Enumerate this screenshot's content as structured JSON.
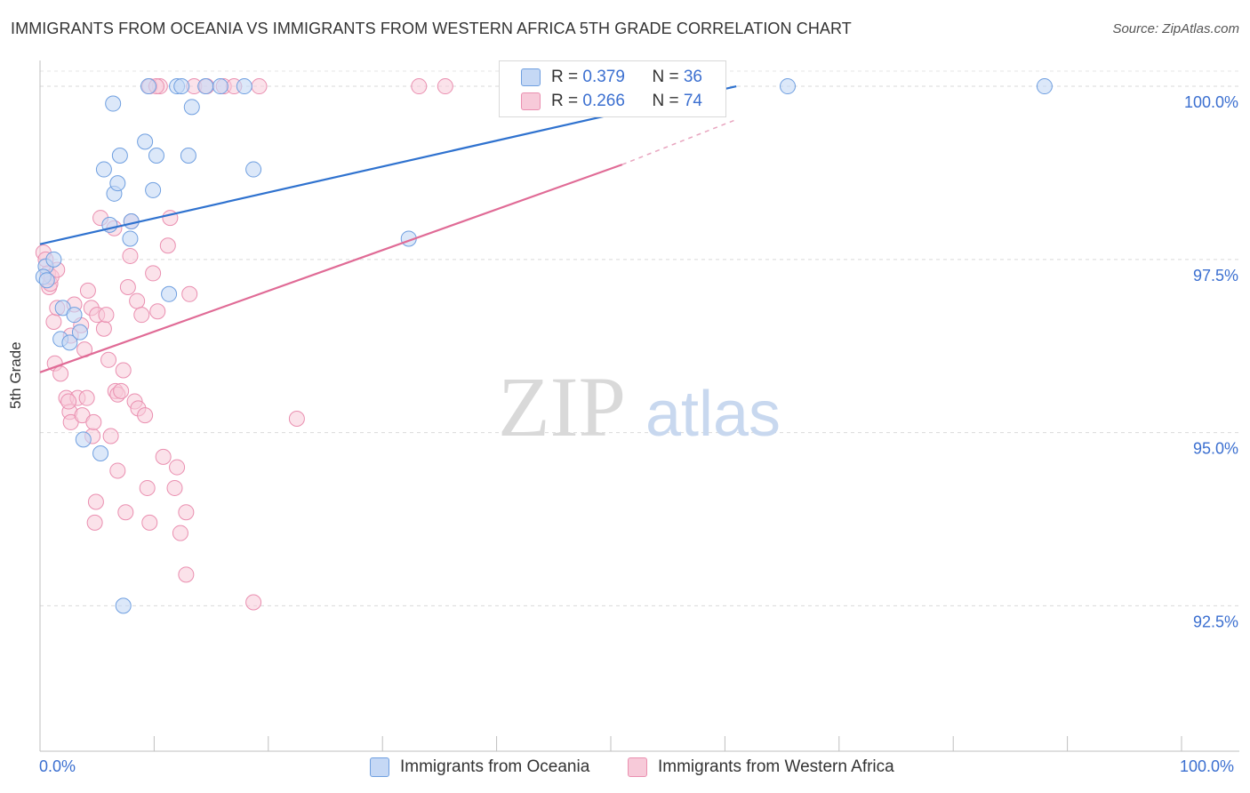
{
  "title": "IMMIGRANTS FROM OCEANIA VS IMMIGRANTS FROM WESTERN AFRICA 5TH GRADE CORRELATION CHART",
  "source": "Source: ZipAtlas.com",
  "watermark": {
    "zip": "ZIP",
    "atlas": "atlas"
  },
  "legend": {
    "rows": [
      {
        "r_label": "R = ",
        "r_value": "0.379",
        "n_label": "N = ",
        "n_value": "36"
      },
      {
        "r_label": "R = ",
        "r_value": "0.266",
        "n_label": "N = ",
        "n_value": "74"
      }
    ]
  },
  "chart_data": {
    "type": "scatter",
    "title": "IMMIGRANTS FROM OCEANIA VS IMMIGRANTS FROM WESTERN AFRICA 5TH GRADE CORRELATION CHART",
    "xlabel": "",
    "ylabel": "5th Grade",
    "xlim": [
      0,
      100
    ],
    "ylim": [
      90.4,
      100.45
    ],
    "x_tick_labels": [
      "0.0%",
      "100.0%"
    ],
    "y_ticks": [
      92.5,
      95.0,
      97.5,
      100.0
    ],
    "y_tick_labels": [
      "92.5%",
      "95.0%",
      "97.5%",
      "100.0%"
    ],
    "grid": true,
    "colors": {
      "oceania": "#6f9fe0",
      "oceania_fill": "#c5d8f5",
      "wafrica": "#ea8fb0",
      "wafrica_fill": "#f7cad9",
      "axis_label": "#3b6fd0"
    },
    "series": [
      {
        "name": "Immigrants from Oceania",
        "r": 0.379,
        "n": 36,
        "trend": {
          "x": [
            0,
            61
          ],
          "y": [
            97.72,
            100.0
          ]
        },
        "points": [
          {
            "x": 0.5,
            "y": 97.4
          },
          {
            "x": 1.2,
            "y": 97.5
          },
          {
            "x": 2.0,
            "y": 96.8
          },
          {
            "x": 3.0,
            "y": 96.7
          },
          {
            "x": 1.8,
            "y": 96.35
          },
          {
            "x": 2.6,
            "y": 96.3
          },
          {
            "x": 3.5,
            "y": 96.45
          },
          {
            "x": 3.8,
            "y": 94.9
          },
          {
            "x": 5.3,
            "y": 94.7
          },
          {
            "x": 6.5,
            "y": 98.45
          },
          {
            "x": 6.8,
            "y": 98.6
          },
          {
            "x": 5.6,
            "y": 98.8
          },
          {
            "x": 7.0,
            "y": 99.0
          },
          {
            "x": 6.4,
            "y": 99.75
          },
          {
            "x": 9.2,
            "y": 99.2
          },
          {
            "x": 10.2,
            "y": 99.0
          },
          {
            "x": 9.9,
            "y": 98.5
          },
          {
            "x": 6.1,
            "y": 98.0
          },
          {
            "x": 8.0,
            "y": 98.05
          },
          {
            "x": 7.9,
            "y": 97.8
          },
          {
            "x": 11.3,
            "y": 97.0
          },
          {
            "x": 9.5,
            "y": 100.0
          },
          {
            "x": 12.0,
            "y": 100.0
          },
          {
            "x": 12.4,
            "y": 100.0
          },
          {
            "x": 14.5,
            "y": 100.0
          },
          {
            "x": 15.8,
            "y": 100.0
          },
          {
            "x": 17.9,
            "y": 100.0
          },
          {
            "x": 13.3,
            "y": 99.7
          },
          {
            "x": 13.0,
            "y": 99.0
          },
          {
            "x": 18.7,
            "y": 98.8
          },
          {
            "x": 32.3,
            "y": 97.8
          },
          {
            "x": 65.5,
            "y": 100.0
          },
          {
            "x": 88.0,
            "y": 100.0
          },
          {
            "x": 7.3,
            "y": 92.5
          },
          {
            "x": 0.3,
            "y": 97.25
          },
          {
            "x": 0.6,
            "y": 97.2
          }
        ]
      },
      {
        "name": "Immigrants from Western Africa",
        "r": 0.266,
        "n": 74,
        "trend": {
          "x": [
            0,
            51
          ],
          "y": [
            95.87,
            98.87
          ]
        },
        "trend_dashed": {
          "x": [
            51,
            61
          ],
          "y": [
            98.87,
            99.52
          ]
        },
        "points": [
          {
            "x": 0.3,
            "y": 97.6
          },
          {
            "x": 0.5,
            "y": 97.5
          },
          {
            "x": 0.7,
            "y": 97.3
          },
          {
            "x": 0.8,
            "y": 97.1
          },
          {
            "x": 0.9,
            "y": 97.15
          },
          {
            "x": 1.0,
            "y": 97.25
          },
          {
            "x": 1.2,
            "y": 96.6
          },
          {
            "x": 1.3,
            "y": 96.0
          },
          {
            "x": 1.5,
            "y": 96.8
          },
          {
            "x": 1.8,
            "y": 95.85
          },
          {
            "x": 2.3,
            "y": 95.5
          },
          {
            "x": 2.6,
            "y": 95.3
          },
          {
            "x": 2.7,
            "y": 95.15
          },
          {
            "x": 3.0,
            "y": 96.85
          },
          {
            "x": 3.3,
            "y": 95.5
          },
          {
            "x": 3.6,
            "y": 96.55
          },
          {
            "x": 3.7,
            "y": 95.25
          },
          {
            "x": 3.9,
            "y": 96.2
          },
          {
            "x": 4.1,
            "y": 95.5
          },
          {
            "x": 4.2,
            "y": 97.05
          },
          {
            "x": 4.5,
            "y": 96.8
          },
          {
            "x": 4.6,
            "y": 94.95
          },
          {
            "x": 4.7,
            "y": 95.15
          },
          {
            "x": 5.0,
            "y": 96.7
          },
          {
            "x": 5.3,
            "y": 98.1
          },
          {
            "x": 5.6,
            "y": 96.5
          },
          {
            "x": 5.8,
            "y": 96.7
          },
          {
            "x": 6.0,
            "y": 96.05
          },
          {
            "x": 6.2,
            "y": 94.95
          },
          {
            "x": 6.5,
            "y": 97.95
          },
          {
            "x": 6.6,
            "y": 95.6
          },
          {
            "x": 6.8,
            "y": 95.55
          },
          {
            "x": 7.1,
            "y": 95.6
          },
          {
            "x": 7.3,
            "y": 95.9
          },
          {
            "x": 7.7,
            "y": 97.1
          },
          {
            "x": 7.9,
            "y": 97.55
          },
          {
            "x": 8.0,
            "y": 98.05
          },
          {
            "x": 8.3,
            "y": 95.45
          },
          {
            "x": 8.5,
            "y": 96.9
          },
          {
            "x": 8.6,
            "y": 95.35
          },
          {
            "x": 8.9,
            "y": 96.7
          },
          {
            "x": 9.2,
            "y": 95.25
          },
          {
            "x": 9.4,
            "y": 94.2
          },
          {
            "x": 9.6,
            "y": 93.7
          },
          {
            "x": 9.9,
            "y": 97.3
          },
          {
            "x": 10.3,
            "y": 96.75
          },
          {
            "x": 10.5,
            "y": 100.0
          },
          {
            "x": 10.8,
            "y": 94.65
          },
          {
            "x": 11.2,
            "y": 97.7
          },
          {
            "x": 11.4,
            "y": 98.1
          },
          {
            "x": 11.8,
            "y": 94.2
          },
          {
            "x": 12.0,
            "y": 94.5
          },
          {
            "x": 12.3,
            "y": 93.55
          },
          {
            "x": 12.8,
            "y": 93.85
          },
          {
            "x": 13.1,
            "y": 97.0
          },
          {
            "x": 13.5,
            "y": 100.0
          },
          {
            "x": 14.6,
            "y": 100.0
          },
          {
            "x": 16.1,
            "y": 100.0
          },
          {
            "x": 17.0,
            "y": 100.0
          },
          {
            "x": 18.7,
            "y": 92.55
          },
          {
            "x": 19.2,
            "y": 100.0
          },
          {
            "x": 22.5,
            "y": 95.2
          },
          {
            "x": 33.2,
            "y": 100.0
          },
          {
            "x": 35.5,
            "y": 100.0
          },
          {
            "x": 12.8,
            "y": 92.95
          },
          {
            "x": 7.5,
            "y": 93.85
          },
          {
            "x": 4.9,
            "y": 94.0
          },
          {
            "x": 4.8,
            "y": 93.7
          },
          {
            "x": 6.8,
            "y": 94.45
          },
          {
            "x": 2.7,
            "y": 96.4
          },
          {
            "x": 1.5,
            "y": 97.35
          },
          {
            "x": 9.6,
            "y": 100.0
          },
          {
            "x": 10.2,
            "y": 100.0
          },
          {
            "x": 2.5,
            "y": 95.45
          }
        ]
      }
    ]
  }
}
